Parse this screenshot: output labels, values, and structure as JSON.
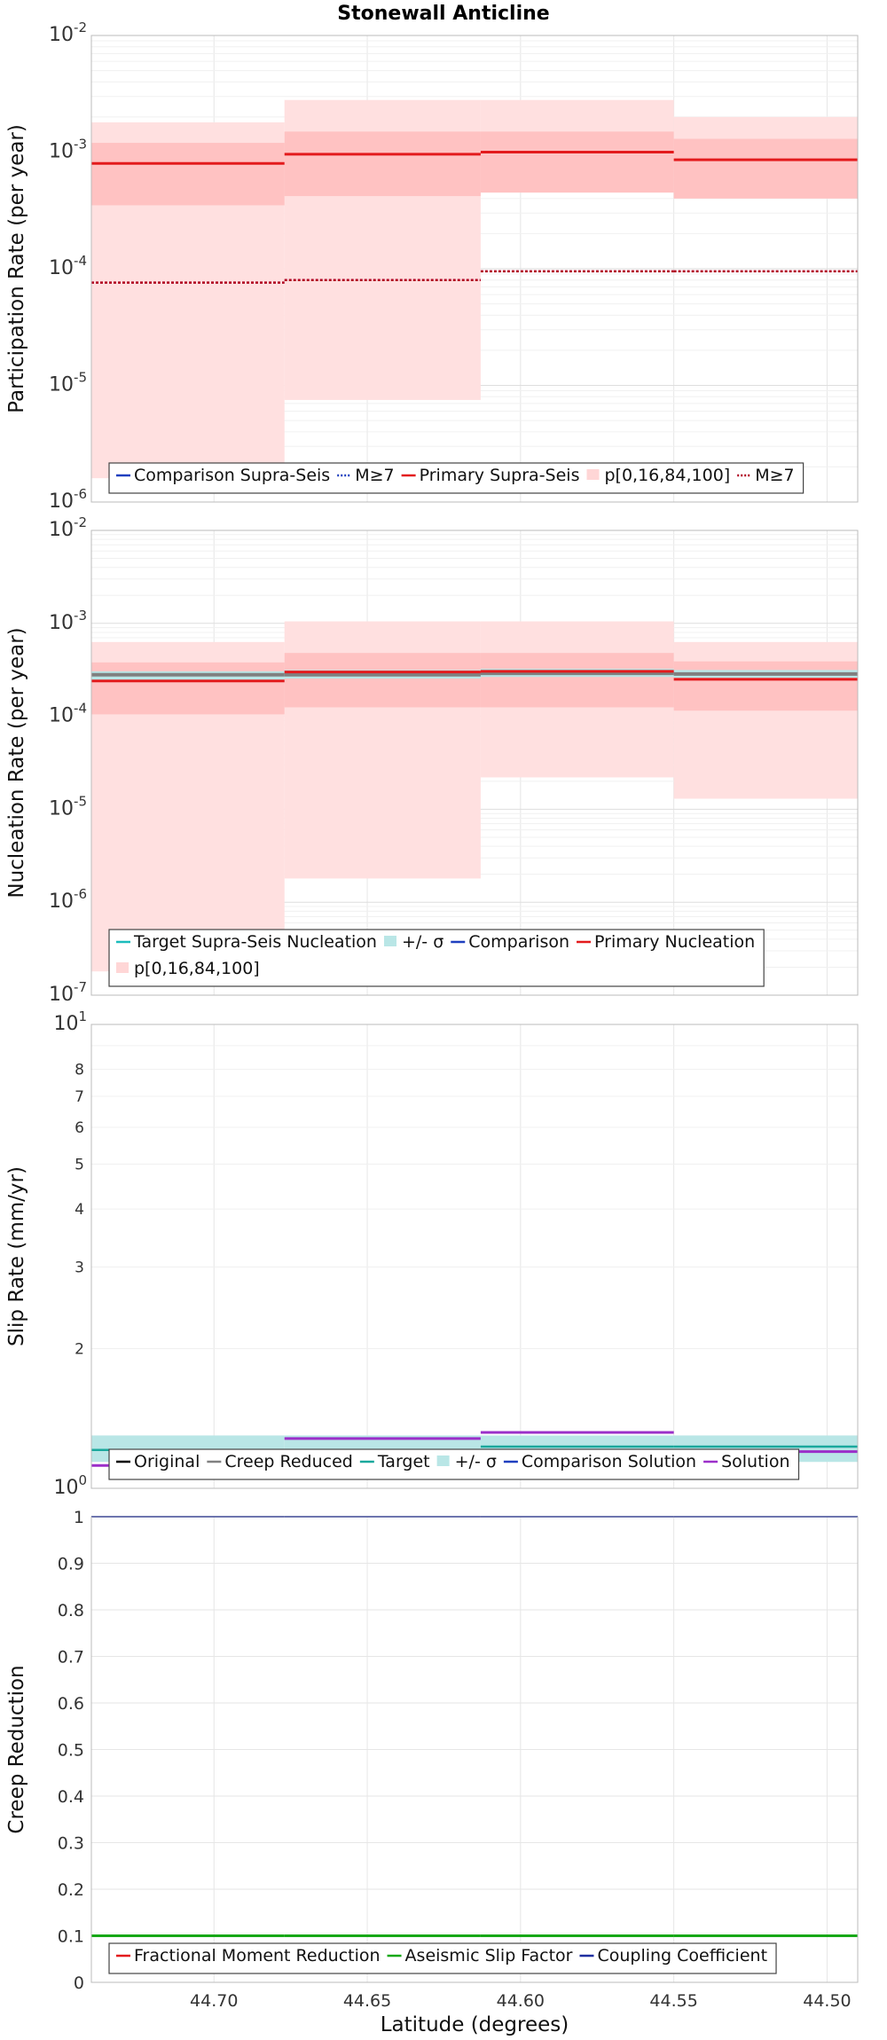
{
  "chart_data": {
    "title": "Stonewall Anticline",
    "xlabel": "Latitude (degrees)",
    "xlim": [
      44.74,
      44.49
    ],
    "xticks": [
      44.7,
      44.65,
      44.6,
      44.55,
      44.5
    ],
    "xtick_labels": [
      "44.70",
      "44.65",
      "44.60",
      "44.55",
      "44.50"
    ],
    "sections": [
      44.74,
      44.677,
      44.613,
      44.55,
      44.49
    ],
    "panels": [
      {
        "id": "participation",
        "type": "line",
        "scale": "log",
        "ylabel": "Participation Rate (per year)",
        "ylim": [
          1e-06,
          0.01
        ],
        "decades": [
          -6,
          -5,
          -4,
          -3,
          -2
        ],
        "bands": [
          {
            "color": "#ffe0e0",
            "lo": [
              1.6e-06,
              7.5e-06,
              0.00045,
              0.0004
            ],
            "hi": [
              0.0018,
              0.0028,
              0.0028,
              0.002
            ]
          },
          {
            "color": "#ffc2c2",
            "lo": [
              0.00035,
              0.00042,
              0.00045,
              0.0004
            ],
            "hi": [
              0.0012,
              0.0015,
              0.0015,
              0.0013
            ]
          }
        ],
        "series": [
          {
            "name": "Primary Supra-Seis",
            "color": "#e31a1c",
            "width": 3,
            "dash": "",
            "values": [
              0.0008,
              0.00096,
              0.001,
              0.00086
            ]
          },
          {
            "name": "M≥7",
            "color": "#b00020",
            "width": 2.5,
            "dash": "3,2",
            "values": [
              7.6e-05,
              8e-05,
              9.5e-05,
              9.5e-05
            ]
          }
        ],
        "legend": {
          "rows": [
            [
              {
                "label": "Comparison Supra-Seis",
                "kind": "line",
                "color": "#1f3fbf",
                "dash": ""
              },
              {
                "label": "M≥7",
                "kind": "line",
                "color": "#1f3fbf",
                "dash": "2,2"
              },
              {
                "label": "Primary Supra-Seis",
                "kind": "line",
                "color": "#e31a1c",
                "dash": ""
              },
              {
                "label": "p[0,16,84,100]",
                "kind": "box",
                "color": "#ffd6d6",
                "dash": ""
              },
              {
                "label": "M≥7",
                "kind": "line",
                "color": "#b00020",
                "dash": "2,2"
              }
            ]
          ]
        }
      },
      {
        "id": "nucleation",
        "type": "line",
        "scale": "log",
        "ylabel": "Nucleation Rate (per year)",
        "ylim": [
          1e-07,
          0.01
        ],
        "decades": [
          -7,
          -6,
          -5,
          -4,
          -3,
          -2
        ],
        "bands": [
          {
            "color": "#ffe0e0",
            "lo": [
              1.8e-07,
              1.8e-06,
              2.2e-05,
              1.3e-05
            ],
            "hi": [
              0.00063,
              0.00105,
              0.00105,
              0.00063
            ]
          },
          {
            "color": "#ffc2c2",
            "lo": [
              0.000105,
              0.000125,
              0.000125,
              0.000115
            ],
            "hi": [
              0.00038,
              0.00048,
              0.00048,
              0.00039
            ]
          },
          {
            "color": "#b9e6e6",
            "lo": [
              0.000235,
              0.000255,
              0.000265,
              0.00026
            ],
            "hi": [
              0.000305,
              0.000315,
              0.000325,
              0.000315
            ]
          }
        ],
        "series": [
          {
            "name": "Target Supra-Seis Nucleation",
            "color": "#808080",
            "width": 4,
            "dash": "",
            "values": [
              0.00028,
              0.00028,
              0.00029,
              0.000285
            ]
          },
          {
            "name": "Primary Nucleation",
            "color": "#e31a1c",
            "width": 3,
            "dash": "",
            "values": [
              0.00024,
              0.0003,
              0.000305,
              0.00025
            ]
          }
        ],
        "legend": {
          "rows": [
            [
              {
                "label": "Target Supra-Seis Nucleation",
                "kind": "line",
                "color": "#1bbcbc",
                "dash": ""
              },
              {
                "label": "+/- σ",
                "kind": "box",
                "color": "#b9e6e6",
                "dash": ""
              },
              {
                "label": "Comparison",
                "kind": "line",
                "color": "#1f3fbf",
                "dash": ""
              },
              {
                "label": "Primary Nucleation",
                "kind": "line",
                "color": "#e31a1c",
                "dash": ""
              }
            ],
            [
              {
                "label": "p[0,16,84,100]",
                "kind": "box",
                "color": "#ffd6d6",
                "dash": ""
              }
            ]
          ]
        }
      },
      {
        "id": "slip",
        "type": "line",
        "scale": "log",
        "ylabel": "Slip Rate (mm/yr)",
        "ylim": [
          1.0,
          10.0
        ],
        "decades": [
          0,
          1
        ],
        "minor_ticks": [
          2,
          3,
          4,
          5,
          6,
          7,
          8
        ],
        "bands": [
          {
            "color": "#b9e6e6",
            "lo": [
              1.14,
              1.14,
              1.14,
              1.14
            ],
            "hi": [
              1.3,
              1.3,
              1.3,
              1.3
            ]
          }
        ],
        "series": [
          {
            "name": "Target",
            "color": "#1aa89c",
            "width": 2.5,
            "dash": "",
            "values": [
              1.21,
              1.21,
              1.23,
              1.23
            ]
          },
          {
            "name": "Solution",
            "color": "#9b2fc9",
            "width": 3,
            "dash": "",
            "values": [
              1.12,
              1.28,
              1.32,
              1.2
            ]
          }
        ],
        "legend": {
          "rows": [
            [
              {
                "label": "Original",
                "kind": "line",
                "color": "#000000",
                "dash": ""
              },
              {
                "label": "Creep Reduced",
                "kind": "line",
                "color": "#808080",
                "dash": ""
              },
              {
                "label": "Target",
                "kind": "line",
                "color": "#1aa89c",
                "dash": ""
              },
              {
                "label": "+/- σ",
                "kind": "box",
                "color": "#b9e6e6",
                "dash": ""
              },
              {
                "label": "Comparison Solution",
                "kind": "line",
                "color": "#1f3fbf",
                "dash": ""
              },
              {
                "label": "Solution",
                "kind": "line",
                "color": "#9b2fc9",
                "dash": ""
              }
            ]
          ]
        }
      },
      {
        "id": "creep",
        "type": "line",
        "scale": "linear",
        "ylabel": "Creep Reduction",
        "ylim": [
          0,
          1
        ],
        "yticks": [
          0,
          0.1,
          0.2,
          0.3,
          0.4,
          0.5,
          0.6,
          0.7,
          0.8,
          0.9,
          1
        ],
        "ytick_labels": [
          "0",
          "0.1",
          "0.2",
          "0.3",
          "0.4",
          "0.5",
          "0.6",
          "0.7",
          "0.8",
          "0.9",
          "1"
        ],
        "bands": [],
        "series": [
          {
            "name": "Coupling Coefficient",
            "color": "#1f2fa0",
            "width": 2,
            "dash": "",
            "values": [
              1.0,
              1.0,
              1.0,
              1.0
            ]
          },
          {
            "name": "Aseismic Slip Factor",
            "color": "#18a818",
            "width": 3,
            "dash": "",
            "values": [
              0.1,
              0.1,
              0.1,
              0.1
            ]
          }
        ],
        "legend": {
          "rows": [
            [
              {
                "label": "Fractional Moment Reduction",
                "kind": "line",
                "color": "#e31a1c",
                "dash": ""
              },
              {
                "label": "Aseismic Slip Factor",
                "kind": "line",
                "color": "#18a818",
                "dash": ""
              },
              {
                "label": "Coupling Coefficient",
                "kind": "line",
                "color": "#1f2fa0",
                "dash": ""
              }
            ]
          ]
        }
      }
    ]
  }
}
